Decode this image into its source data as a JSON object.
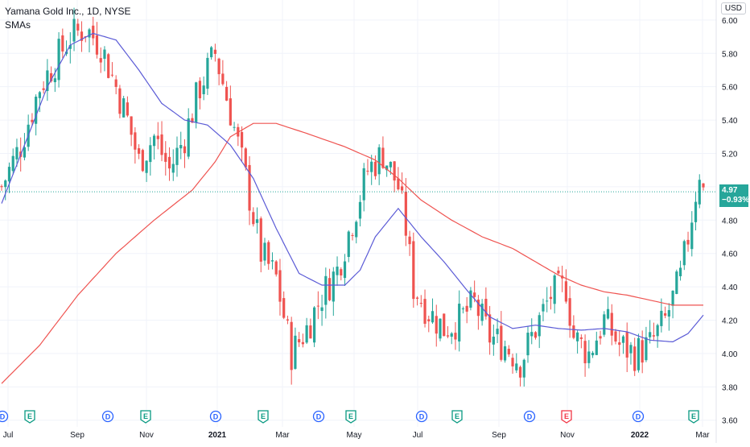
{
  "legend": {
    "title": "Yamana Gold Inc., 1D, NYSE",
    "indicator": "SMAs"
  },
  "currency": "USD",
  "last_price": {
    "value": "4.97",
    "change": "−0.93%"
  },
  "colors": {
    "up": "#26a69a",
    "down": "#ef5350",
    "sma_fast": "#5b5bd6",
    "sma_slow": "#ef5350",
    "grid": "#f0f3fa",
    "axis_text": "#131722"
  },
  "chart_data": {
    "type": "candlestick",
    "y_axis": {
      "ticks": [
        "6.00",
        "5.80",
        "5.60",
        "5.40",
        "5.20",
        "5.00",
        "4.80",
        "4.60",
        "4.40",
        "4.20",
        "4.00",
        "3.80",
        "3.60"
      ],
      "ylim": [
        3.56,
        6.12
      ]
    },
    "x_axis": {
      "ticks": [
        "Jul",
        "Sep",
        "Nov",
        "2021",
        "Mar",
        "May",
        "Jul",
        "Sep",
        "Nov",
        "2022",
        "Mar"
      ],
      "bold_ticks": [
        "2021",
        "2022"
      ]
    },
    "series_close_anchors": [
      [
        0,
        5.0
      ],
      [
        5,
        5.25
      ],
      [
        10,
        5.6
      ],
      [
        14,
        5.75
      ],
      [
        18,
        5.9
      ],
      [
        22,
        5.95
      ],
      [
        26,
        5.85
      ],
      [
        30,
        5.6
      ],
      [
        33,
        5.4
      ],
      [
        36,
        5.15
      ],
      [
        40,
        5.3
      ],
      [
        44,
        5.1
      ],
      [
        48,
        5.3
      ],
      [
        52,
        5.6
      ],
      [
        56,
        5.8
      ],
      [
        60,
        5.45
      ],
      [
        64,
        5.05
      ],
      [
        68,
        4.6
      ],
      [
        72,
        4.45
      ],
      [
        76,
        4.0
      ],
      [
        80,
        4.15
      ],
      [
        84,
        4.35
      ],
      [
        88,
        4.5
      ],
      [
        92,
        4.8
      ],
      [
        96,
        5.1
      ],
      [
        100,
        5.2
      ],
      [
        104,
        5.0
      ],
      [
        106,
        4.75
      ],
      [
        108,
        4.4
      ],
      [
        112,
        4.25
      ],
      [
        116,
        4.15
      ],
      [
        120,
        4.2
      ],
      [
        124,
        4.3
      ],
      [
        128,
        4.1
      ],
      [
        132,
        4.05
      ],
      [
        136,
        3.95
      ],
      [
        140,
        4.15
      ],
      [
        144,
        4.35
      ],
      [
        148,
        4.4
      ],
      [
        150,
        4.1
      ],
      [
        154,
        4.0
      ],
      [
        158,
        4.2
      ],
      [
        162,
        4.05
      ],
      [
        166,
        4.0
      ],
      [
        170,
        4.05
      ],
      [
        174,
        4.2
      ],
      [
        178,
        4.45
      ],
      [
        180,
        4.7
      ],
      [
        183,
        5.1
      ],
      [
        184,
        4.97
      ]
    ],
    "sma_fast_anchors": [
      [
        0,
        4.9
      ],
      [
        6,
        5.25
      ],
      [
        12,
        5.6
      ],
      [
        18,
        5.85
      ],
      [
        24,
        5.92
      ],
      [
        30,
        5.88
      ],
      [
        36,
        5.7
      ],
      [
        42,
        5.5
      ],
      [
        48,
        5.4
      ],
      [
        54,
        5.37
      ],
      [
        60,
        5.25
      ],
      [
        66,
        5.05
      ],
      [
        72,
        4.75
      ],
      [
        78,
        4.48
      ],
      [
        84,
        4.41
      ],
      [
        90,
        4.41
      ],
      [
        94,
        4.5
      ],
      [
        98,
        4.7
      ],
      [
        104,
        4.87
      ],
      [
        110,
        4.7
      ],
      [
        116,
        4.55
      ],
      [
        122,
        4.38
      ],
      [
        128,
        4.22
      ],
      [
        134,
        4.15
      ],
      [
        140,
        4.17
      ],
      [
        146,
        4.15
      ],
      [
        152,
        4.14
      ],
      [
        158,
        4.15
      ],
      [
        164,
        4.13
      ],
      [
        170,
        4.08
      ],
      [
        176,
        4.07
      ],
      [
        180,
        4.12
      ],
      [
        184,
        4.23
      ]
    ],
    "sma_slow_anchors": [
      [
        0,
        3.82
      ],
      [
        10,
        4.05
      ],
      [
        20,
        4.35
      ],
      [
        30,
        4.6
      ],
      [
        40,
        4.8
      ],
      [
        50,
        4.98
      ],
      [
        56,
        5.15
      ],
      [
        60,
        5.3
      ],
      [
        66,
        5.38
      ],
      [
        72,
        5.38
      ],
      [
        80,
        5.32
      ],
      [
        90,
        5.24
      ],
      [
        98,
        5.16
      ],
      [
        104,
        5.05
      ],
      [
        110,
        4.92
      ],
      [
        118,
        4.8
      ],
      [
        126,
        4.7
      ],
      [
        134,
        4.63
      ],
      [
        140,
        4.55
      ],
      [
        146,
        4.47
      ],
      [
        152,
        4.41
      ],
      [
        158,
        4.37
      ],
      [
        164,
        4.35
      ],
      [
        170,
        4.32
      ],
      [
        176,
        4.29
      ],
      [
        184,
        4.29
      ]
    ],
    "events": [
      {
        "label": "D",
        "kind": "dividend"
      },
      {
        "label": "E",
        "kind": "earnings"
      },
      {
        "label": "D",
        "kind": "dividend"
      },
      {
        "label": "E",
        "kind": "earnings"
      },
      {
        "label": "D",
        "kind": "dividend"
      },
      {
        "label": "E",
        "kind": "earnings"
      },
      {
        "label": "D",
        "kind": "dividend"
      },
      {
        "label": "E",
        "kind": "earnings"
      },
      {
        "label": "D",
        "kind": "dividend"
      },
      {
        "label": "E",
        "kind": "earnings"
      },
      {
        "label": "D",
        "kind": "dividend"
      },
      {
        "label": "E",
        "kind": "earnings-red"
      },
      {
        "label": "D",
        "kind": "dividend"
      },
      {
        "label": "E",
        "kind": "earnings"
      }
    ]
  }
}
